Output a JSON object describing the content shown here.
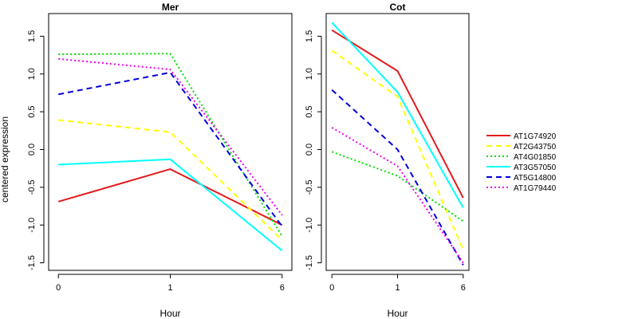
{
  "chart_data": {
    "type": "line",
    "ylabel": "centered expression",
    "xlabel": "Hour",
    "x": [
      "0",
      "1",
      "6"
    ],
    "ylim": [
      -1.6,
      1.8
    ],
    "yticks": [
      -1.5,
      -1.0,
      -0.5,
      0.0,
      0.5,
      1.0,
      1.5
    ],
    "ytick_labels": [
      "-1.5",
      "-1.0",
      "-0.5",
      "0.0",
      "0.5",
      "1.0",
      "1.5"
    ],
    "legend_position": "right",
    "series_styles": [
      {
        "name": "AT1G74920",
        "color": "#e41a1c",
        "dash": "solid"
      },
      {
        "name": "AT2G43750",
        "color": "#ffff00",
        "dash": "dashed"
      },
      {
        "name": "AT4G01850",
        "color": "#00dd00",
        "dash": "dotted"
      },
      {
        "name": "AT3G57050",
        "color": "#00ffff",
        "dash": "solid"
      },
      {
        "name": "AT5G14800",
        "color": "#0000dd",
        "dash": "dashed"
      },
      {
        "name": "AT1G79440",
        "color": "#ee00ee",
        "dash": "dotted"
      }
    ],
    "panels": [
      {
        "title": "Mer",
        "series": [
          {
            "name": "AT1G74920",
            "values": [
              -0.69,
              -0.26,
              -1.0
            ]
          },
          {
            "name": "AT2G43750",
            "values": [
              0.39,
              0.23,
              -1.2
            ]
          },
          {
            "name": "AT4G01850",
            "values": [
              1.26,
              1.27,
              -1.15
            ]
          },
          {
            "name": "AT3G57050",
            "values": [
              -0.2,
              -0.13,
              -1.34
            ]
          },
          {
            "name": "AT5G14800",
            "values": [
              0.73,
              1.02,
              -1.02
            ]
          },
          {
            "name": "AT1G79440",
            "values": [
              1.2,
              1.06,
              -0.87
            ]
          }
        ]
      },
      {
        "title": "Cot",
        "series": [
          {
            "name": "AT1G74920",
            "values": [
              1.58,
              1.04,
              -0.64
            ]
          },
          {
            "name": "AT2G43750",
            "values": [
              1.31,
              0.7,
              -1.33
            ]
          },
          {
            "name": "AT4G01850",
            "values": [
              -0.03,
              -0.35,
              -0.95
            ]
          },
          {
            "name": "AT3G57050",
            "values": [
              1.68,
              0.76,
              -0.77
            ]
          },
          {
            "name": "AT5G14800",
            "values": [
              0.79,
              0.0,
              -1.53
            ]
          },
          {
            "name": "AT1G79440",
            "values": [
              0.29,
              -0.22,
              -1.5
            ]
          }
        ]
      }
    ]
  }
}
